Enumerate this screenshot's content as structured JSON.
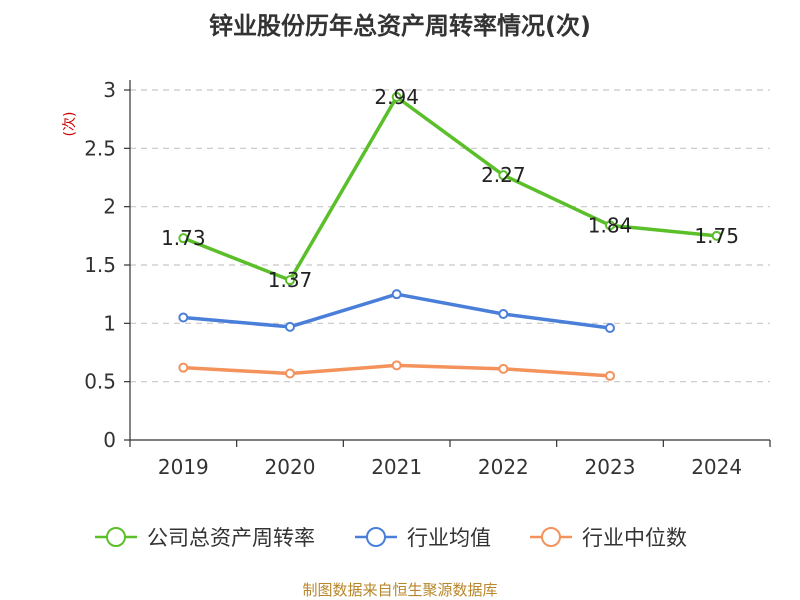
{
  "chart_data": {
    "type": "line",
    "title": "锌业股份历年总资产周转率情况(次)",
    "ylabel": "(次)",
    "categories": [
      "2019",
      "2020",
      "2021",
      "2022",
      "2023",
      "2024"
    ],
    "y_ticks": [
      "0",
      "0.5",
      "1",
      "1.5",
      "2",
      "2.5",
      "3"
    ],
    "ylim": [
      0,
      3
    ],
    "grid": true,
    "legend_position": "bottom",
    "series": [
      {
        "name": "公司总资产周转率",
        "color": "#5bbf2a",
        "values": [
          1.73,
          1.37,
          2.94,
          2.27,
          1.84,
          1.75
        ],
        "labels": [
          "1.73",
          "1.37",
          "2.94",
          "2.27",
          "1.84",
          "1.75"
        ]
      },
      {
        "name": "行业均值",
        "color": "#4a7fd9",
        "values": [
          1.05,
          0.97,
          1.25,
          1.08,
          0.96,
          null
        ]
      },
      {
        "name": "行业中位数",
        "color": "#f4925c",
        "values": [
          0.62,
          0.57,
          0.64,
          0.61,
          0.55,
          null
        ]
      }
    ],
    "source": "制图数据来自恒生聚源数据库"
  }
}
